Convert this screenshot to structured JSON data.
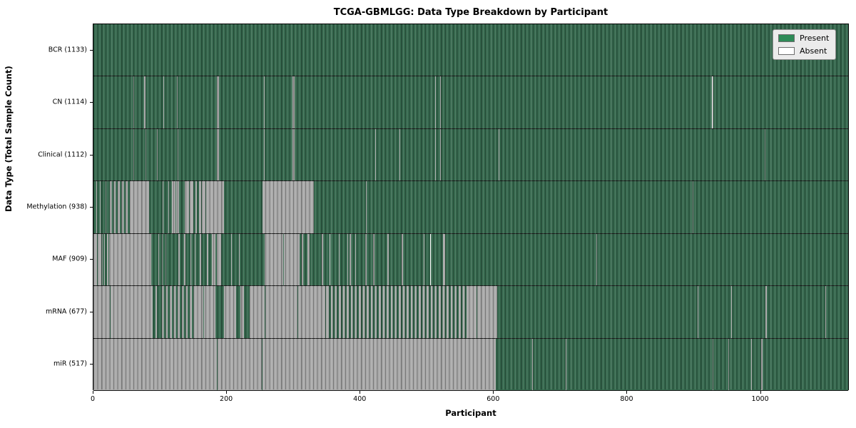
{
  "chart_data": {
    "type": "heatmap",
    "title": "TCGA-GBMLGG: Data Type Breakdown by Participant",
    "xlabel": "Participant",
    "ylabel": "Data Type (Total Sample Count)",
    "x_max": 1133,
    "x_ticks": [
      0,
      200,
      400,
      600,
      800,
      1000
    ],
    "grid": false,
    "legend_position": "upper right",
    "legend": [
      {
        "label": "Present",
        "color": "#2e8b57"
      },
      {
        "label": "Absent",
        "color": "#ffffff"
      }
    ],
    "present_color": "#2e8b57",
    "absent_color": "#ffffff",
    "rows": [
      {
        "label": "BCR (1133)",
        "data_type": "BCR",
        "total_samples": 1133,
        "segments": [
          [
            0,
            1133,
            "P"
          ]
        ]
      },
      {
        "label": "CN (1114)",
        "data_type": "CN",
        "total_samples": 1114,
        "segments": [
          [
            0,
            60,
            "P"
          ],
          [
            60,
            61,
            "A"
          ],
          [
            61,
            76,
            "P"
          ],
          [
            76,
            78,
            "A"
          ],
          [
            78,
            105,
            "P"
          ],
          [
            105,
            106,
            "A"
          ],
          [
            106,
            125,
            "P"
          ],
          [
            125,
            126,
            "A"
          ],
          [
            126,
            185,
            "P"
          ],
          [
            185,
            188,
            "A"
          ],
          [
            188,
            256,
            "P"
          ],
          [
            256,
            257,
            "A"
          ],
          [
            257,
            299,
            "P"
          ],
          [
            299,
            302,
            "A"
          ],
          [
            302,
            513,
            "P"
          ],
          [
            513,
            514,
            "A"
          ],
          [
            514,
            520,
            "P"
          ],
          [
            520,
            521,
            "A"
          ],
          [
            521,
            929,
            "P"
          ],
          [
            929,
            931,
            "A"
          ],
          [
            931,
            1133,
            "P"
          ]
        ]
      },
      {
        "label": "Clinical (1112)",
        "data_type": "Clinical",
        "total_samples": 1112,
        "segments": [
          [
            0,
            60,
            "P"
          ],
          [
            60,
            61,
            "A"
          ],
          [
            61,
            78,
            "P"
          ],
          [
            78,
            79,
            "A"
          ],
          [
            79,
            95,
            "P"
          ],
          [
            95,
            96,
            "A"
          ],
          [
            96,
            126,
            "P"
          ],
          [
            126,
            127,
            "A"
          ],
          [
            127,
            185,
            "P"
          ],
          [
            185,
            188,
            "A"
          ],
          [
            188,
            256,
            "P"
          ],
          [
            256,
            257,
            "A"
          ],
          [
            257,
            299,
            "P"
          ],
          [
            299,
            302,
            "A"
          ],
          [
            302,
            423,
            "P"
          ],
          [
            423,
            424,
            "A"
          ],
          [
            424,
            459,
            "P"
          ],
          [
            459,
            460,
            "A"
          ],
          [
            460,
            513,
            "P"
          ],
          [
            513,
            514,
            "A"
          ],
          [
            514,
            520,
            "P"
          ],
          [
            520,
            521,
            "A"
          ],
          [
            521,
            608,
            "P"
          ],
          [
            608,
            609,
            "A"
          ],
          [
            609,
            1008,
            "P"
          ],
          [
            1008,
            1009,
            "A"
          ],
          [
            1009,
            1133,
            "P"
          ]
        ]
      },
      {
        "label": "Methylation (938)",
        "data_type": "Methylation",
        "total_samples": 938,
        "segments": [
          [
            0,
            4,
            "P"
          ],
          [
            4,
            5,
            "A"
          ],
          [
            5,
            10,
            "P"
          ],
          [
            10,
            11,
            "A"
          ],
          [
            11,
            18,
            "P"
          ],
          [
            18,
            19,
            "A"
          ],
          [
            19,
            21,
            "P"
          ],
          [
            21,
            57,
            "M"
          ],
          [
            57,
            84,
            "A"
          ],
          [
            84,
            104,
            "P"
          ],
          [
            104,
            105,
            "A"
          ],
          [
            105,
            112,
            "P"
          ],
          [
            112,
            113,
            "A"
          ],
          [
            113,
            118,
            "P"
          ],
          [
            118,
            123,
            "A"
          ],
          [
            123,
            124,
            "P"
          ],
          [
            124,
            128,
            "A"
          ],
          [
            128,
            137,
            "P"
          ],
          [
            137,
            144,
            "A"
          ],
          [
            144,
            145,
            "P"
          ],
          [
            145,
            150,
            "A"
          ],
          [
            150,
            153,
            "P"
          ],
          [
            153,
            155,
            "A"
          ],
          [
            155,
            159,
            "P"
          ],
          [
            159,
            162,
            "A"
          ],
          [
            162,
            163,
            "P"
          ],
          [
            163,
            168,
            "A"
          ],
          [
            168,
            169,
            "P"
          ],
          [
            169,
            196,
            "A"
          ],
          [
            196,
            254,
            "P"
          ],
          [
            254,
            331,
            "A"
          ],
          [
            331,
            409,
            "P"
          ],
          [
            409,
            410,
            "A"
          ],
          [
            410,
            900,
            "P"
          ],
          [
            900,
            901,
            "A"
          ],
          [
            901,
            1133,
            "P"
          ]
        ]
      },
      {
        "label": "MAF (909)",
        "data_type": "MAF",
        "total_samples": 909,
        "segments": [
          [
            0,
            5,
            "A"
          ],
          [
            5,
            6,
            "P"
          ],
          [
            6,
            12,
            "A"
          ],
          [
            12,
            13,
            "P"
          ],
          [
            13,
            14,
            "A"
          ],
          [
            14,
            16,
            "P"
          ],
          [
            16,
            17,
            "A"
          ],
          [
            17,
            20,
            "P"
          ],
          [
            20,
            23,
            "A"
          ],
          [
            23,
            24,
            "P"
          ],
          [
            24,
            87,
            "A"
          ],
          [
            87,
            97,
            "P"
          ],
          [
            97,
            98,
            "A"
          ],
          [
            98,
            103,
            "P"
          ],
          [
            103,
            104,
            "A"
          ],
          [
            104,
            108,
            "P"
          ],
          [
            108,
            109,
            "A"
          ],
          [
            109,
            127,
            "P"
          ],
          [
            127,
            130,
            "A"
          ],
          [
            130,
            136,
            "P"
          ],
          [
            136,
            138,
            "A"
          ],
          [
            138,
            146,
            "P"
          ],
          [
            146,
            147,
            "A"
          ],
          [
            147,
            152,
            "P"
          ],
          [
            152,
            153,
            "A"
          ],
          [
            153,
            160,
            "P"
          ],
          [
            160,
            162,
            "A"
          ],
          [
            162,
            170,
            "P"
          ],
          [
            170,
            172,
            "A"
          ],
          [
            172,
            178,
            "P"
          ],
          [
            178,
            183,
            "A"
          ],
          [
            183,
            185,
            "P"
          ],
          [
            185,
            192,
            "A"
          ],
          [
            192,
            207,
            "P"
          ],
          [
            207,
            208,
            "A"
          ],
          [
            208,
            218,
            "P"
          ],
          [
            218,
            219,
            "A"
          ],
          [
            219,
            257,
            "P"
          ],
          [
            257,
            285,
            "A"
          ],
          [
            285,
            286,
            "P"
          ],
          [
            286,
            310,
            "A"
          ],
          [
            310,
            313,
            "P"
          ],
          [
            313,
            315,
            "A"
          ],
          [
            315,
            321,
            "P"
          ],
          [
            321,
            324,
            "A"
          ],
          [
            324,
            343,
            "P"
          ],
          [
            343,
            345,
            "A"
          ],
          [
            345,
            355,
            "P"
          ],
          [
            355,
            356,
            "A"
          ],
          [
            356,
            368,
            "P"
          ],
          [
            368,
            369,
            "A"
          ],
          [
            369,
            381,
            "P"
          ],
          [
            381,
            382,
            "A"
          ],
          [
            382,
            384,
            "P"
          ],
          [
            384,
            387,
            "A"
          ],
          [
            387,
            393,
            "P"
          ],
          [
            393,
            394,
            "A"
          ],
          [
            394,
            400,
            "P"
          ],
          [
            400,
            401,
            "A"
          ],
          [
            401,
            408,
            "P"
          ],
          [
            408,
            410,
            "A"
          ],
          [
            410,
            420,
            "P"
          ],
          [
            420,
            422,
            "A"
          ],
          [
            422,
            441,
            "P"
          ],
          [
            441,
            443,
            "A"
          ],
          [
            443,
            463,
            "P"
          ],
          [
            463,
            465,
            "A"
          ],
          [
            465,
            496,
            "P"
          ],
          [
            496,
            497,
            "A"
          ],
          [
            497,
            506,
            "P"
          ],
          [
            506,
            507,
            "A"
          ],
          [
            507,
            525,
            "P"
          ],
          [
            525,
            528,
            "A"
          ],
          [
            528,
            755,
            "P"
          ],
          [
            755,
            756,
            "A"
          ],
          [
            756,
            1133,
            "P"
          ]
        ]
      },
      {
        "label": "mRNA (677)",
        "data_type": "mRNA",
        "total_samples": 677,
        "segments": [
          [
            0,
            25,
            "A"
          ],
          [
            25,
            26,
            "P"
          ],
          [
            26,
            89,
            "A"
          ],
          [
            89,
            93,
            "P"
          ],
          [
            93,
            95,
            "A"
          ],
          [
            95,
            100,
            "P"
          ],
          [
            100,
            153,
            "M"
          ],
          [
            153,
            158,
            "A"
          ],
          [
            158,
            159,
            "P"
          ],
          [
            159,
            165,
            "A"
          ],
          [
            165,
            166,
            "P"
          ],
          [
            166,
            183,
            "A"
          ],
          [
            183,
            196,
            "P"
          ],
          [
            196,
            214,
            "A"
          ],
          [
            214,
            221,
            "P"
          ],
          [
            221,
            226,
            "A"
          ],
          [
            226,
            235,
            "P"
          ],
          [
            235,
            257,
            "A"
          ],
          [
            257,
            258,
            "P"
          ],
          [
            258,
            306,
            "A"
          ],
          [
            306,
            307,
            "P"
          ],
          [
            307,
            348,
            "A"
          ],
          [
            348,
            349,
            "P"
          ],
          [
            349,
            353,
            "A"
          ],
          [
            353,
            563,
            "M"
          ],
          [
            563,
            575,
            "A"
          ],
          [
            575,
            576,
            "P"
          ],
          [
            576,
            606,
            "A"
          ],
          [
            606,
            907,
            "P"
          ],
          [
            907,
            908,
            "A"
          ],
          [
            908,
            957,
            "P"
          ],
          [
            957,
            958,
            "A"
          ],
          [
            958,
            1009,
            "P"
          ],
          [
            1009,
            1011,
            "A"
          ],
          [
            1011,
            1099,
            "P"
          ],
          [
            1099,
            1100,
            "A"
          ],
          [
            1100,
            1133,
            "P"
          ]
        ]
      },
      {
        "label": "miR (517)",
        "data_type": "miR",
        "total_samples": 517,
        "segments": [
          [
            0,
            185,
            "A"
          ],
          [
            185,
            186,
            "P"
          ],
          [
            186,
            253,
            "A"
          ],
          [
            253,
            254,
            "P"
          ],
          [
            254,
            604,
            "A"
          ],
          [
            604,
            659,
            "P"
          ],
          [
            659,
            660,
            "A"
          ],
          [
            660,
            709,
            "P"
          ],
          [
            709,
            710,
            "A"
          ],
          [
            710,
            930,
            "P"
          ],
          [
            930,
            931,
            "A"
          ],
          [
            931,
            953,
            "P"
          ],
          [
            953,
            954,
            "A"
          ],
          [
            954,
            987,
            "P"
          ],
          [
            987,
            988,
            "A"
          ],
          [
            988,
            1002,
            "P"
          ],
          [
            1002,
            1004,
            "A"
          ],
          [
            1004,
            1133,
            "P"
          ]
        ]
      }
    ]
  }
}
